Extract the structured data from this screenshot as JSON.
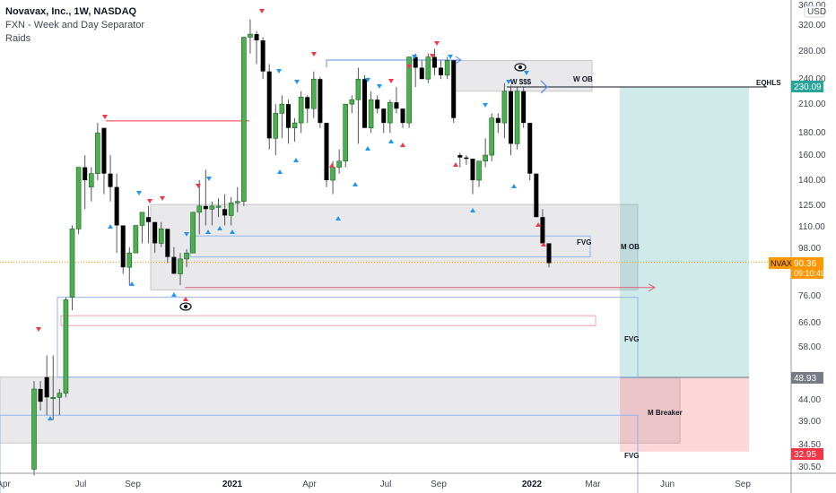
{
  "header": {
    "title": "Novavax, Inc., 1W, NASDAQ",
    "indicators": [
      "FXN - Week and Day Separator",
      "Raids"
    ]
  },
  "price_axis": {
    "currency": "USD",
    "ticks": [
      "360.00",
      "320.00",
      "280.00",
      "240.00",
      "210.00",
      "180.00",
      "160.00",
      "140.00",
      "125.00",
      "110.00",
      "98.00",
      "76.00",
      "66.00",
      "58.00",
      "48.93",
      "44.00",
      "39.00",
      "34.50",
      "30.50"
    ],
    "badges": [
      {
        "label": "230.09",
        "color": "#26a69a"
      },
      {
        "label": "90.36",
        "sub": "09:10:49",
        "color": "#ff9800"
      },
      {
        "label": "48.93",
        "color": "#787b86"
      },
      {
        "label": "32.95",
        "color": "#f23645"
      }
    ],
    "symbol_tag": "NVAX"
  },
  "time_axis": {
    "ticks": [
      "Apr",
      "Jul",
      "Sep",
      "2021",
      "Apr",
      "Jul",
      "Sep",
      "2022",
      "Mar",
      "Jun",
      "Sep"
    ]
  },
  "annotations": {
    "w_ob": "W OB",
    "w_sss": "W $$$",
    "eqhls": "EQHLS",
    "m_ob": "M OB",
    "fvg": "FVG",
    "m_breaker": "M Breaker"
  },
  "colors": {
    "up": "#4caf50",
    "down": "#000000",
    "marker_red": "#f23645",
    "marker_blue": "#2196f3",
    "zone_gray": "#e9e9ec",
    "target_green": "#cdebe8",
    "stop_red": "#fcd8d8"
  },
  "chart_data": {
    "type": "candlestick",
    "title": "Novavax, Inc., 1W, NASDAQ",
    "xlabel": "",
    "ylabel": "USD",
    "y_scale": "log",
    "ylim": [
      29,
      360
    ],
    "x_ticks": [
      "Apr 2020",
      "Jul 2020",
      "Sep 2020",
      "2021",
      "Apr 2021",
      "Jul 2021",
      "Sep 2021",
      "2022",
      "Mar 2022",
      "Jun 2022",
      "Sep 2022"
    ],
    "last_price": 90.36,
    "countdown": "09:10:49",
    "levels": {
      "eqhls": 230.09,
      "target": 230.09,
      "entry": 48.93,
      "stop": 32.95
    },
    "zones": [
      {
        "name": "W OB",
        "from": 225,
        "to": 265
      },
      {
        "name": "M OB",
        "from": 78,
        "to": 123
      },
      {
        "name": "FVG",
        "from": 93,
        "to": 104
      },
      {
        "name": "FVG",
        "from": 49,
        "to": 75
      },
      {
        "name": "M Breaker",
        "from": 34.5,
        "to": 49
      },
      {
        "name": "FVG",
        "from": 30,
        "to": 40
      }
    ],
    "position": {
      "type": "long",
      "entry": 48.93,
      "target": 230.09,
      "stop": 32.95
    },
    "candles_approx": [
      [
        30,
        48,
        29,
        46
      ],
      [
        46,
        48,
        41,
        43
      ],
      [
        49,
        55,
        40,
        44
      ],
      [
        44,
        55,
        39,
        44
      ],
      [
        44,
        46,
        40,
        45
      ],
      [
        45,
        75,
        44,
        74
      ],
      [
        75,
        110,
        70,
        108
      ],
      [
        108,
        138,
        105,
        150
      ],
      [
        150,
        160,
        120,
        140
      ],
      [
        135,
        150,
        125,
        145
      ],
      [
        145,
        190,
        140,
        180
      ],
      [
        185,
        178,
        130,
        145
      ],
      [
        145,
        160,
        125,
        135
      ],
      [
        135,
        145,
        95,
        110
      ],
      [
        110,
        105,
        85,
        88
      ],
      [
        88,
        98,
        80,
        95
      ],
      [
        95,
        110,
        95,
        110
      ],
      [
        110,
        118,
        100,
        118
      ],
      [
        115,
        122,
        100,
        112
      ],
      [
        112,
        105,
        95,
        100
      ],
      [
        100,
        112,
        98,
        108
      ],
      [
        108,
        105,
        90,
        93
      ],
      [
        93,
        98,
        85,
        85
      ],
      [
        85,
        95,
        80,
        92
      ],
      [
        92,
        97,
        88,
        95
      ],
      [
        95,
        118,
        95,
        118
      ],
      [
        118,
        140,
        105,
        122
      ],
      [
        122,
        148,
        110,
        120
      ],
      [
        120,
        125,
        110,
        122
      ],
      [
        122,
        127,
        115,
        122
      ],
      [
        120,
        130,
        110,
        116
      ],
      [
        116,
        128,
        110,
        124
      ],
      [
        124,
        135,
        118,
        125
      ],
      [
        125,
        180,
        122,
        300
      ],
      [
        300,
        330,
        275,
        305
      ],
      [
        305,
        310,
        260,
        295
      ],
      [
        295,
        300,
        240,
        250
      ],
      [
        250,
        260,
        165,
        175
      ],
      [
        175,
        210,
        160,
        200
      ],
      [
        200,
        220,
        175,
        210
      ],
      [
        210,
        215,
        170,
        185
      ],
      [
        185,
        195,
        172,
        190
      ],
      [
        190,
        225,
        180,
        218
      ],
      [
        218,
        220,
        190,
        205
      ],
      [
        205,
        250,
        195,
        240
      ],
      [
        240,
        243,
        185,
        190
      ],
      [
        190,
        175,
        135,
        140
      ],
      [
        140,
        155,
        130,
        150
      ],
      [
        150,
        165,
        145,
        155
      ],
      [
        155,
        200,
        150,
        210
      ],
      [
        210,
        220,
        200,
        215
      ],
      [
        215,
        255,
        170,
        240
      ],
      [
        240,
        245,
        190,
        185
      ],
      [
        185,
        225,
        180,
        215
      ],
      [
        215,
        220,
        200,
        205
      ],
      [
        205,
        205,
        180,
        190
      ],
      [
        190,
        215,
        180,
        212
      ],
      [
        212,
        230,
        200,
        205
      ],
      [
        205,
        200,
        185,
        190
      ],
      [
        190,
        260,
        185,
        270
      ],
      [
        270,
        275,
        230,
        255
      ],
      [
        255,
        265,
        240,
        240
      ],
      [
        240,
        275,
        235,
        270
      ],
      [
        270,
        282,
        245,
        255
      ],
      [
        255,
        265,
        240,
        245
      ],
      [
        245,
        270,
        240,
        265
      ],
      [
        265,
        265,
        190,
        195
      ],
      [
        160,
        162,
        150,
        158
      ],
      [
        158,
        160,
        152,
        157
      ],
      [
        157,
        155,
        130,
        140
      ],
      [
        140,
        155,
        135,
        155
      ],
      [
        155,
        175,
        150,
        160
      ],
      [
        160,
        200,
        155,
        195
      ],
      [
        195,
        200,
        180,
        190
      ],
      [
        190,
        235,
        175,
        225
      ],
      [
        225,
        232,
        160,
        170
      ],
      [
        170,
        230,
        165,
        225
      ],
      [
        225,
        230,
        185,
        190
      ],
      [
        190,
        185,
        140,
        145
      ],
      [
        145,
        140,
        115,
        115
      ],
      [
        115,
        120,
        100,
        100
      ],
      [
        100,
        97,
        88,
        90
      ]
    ]
  }
}
